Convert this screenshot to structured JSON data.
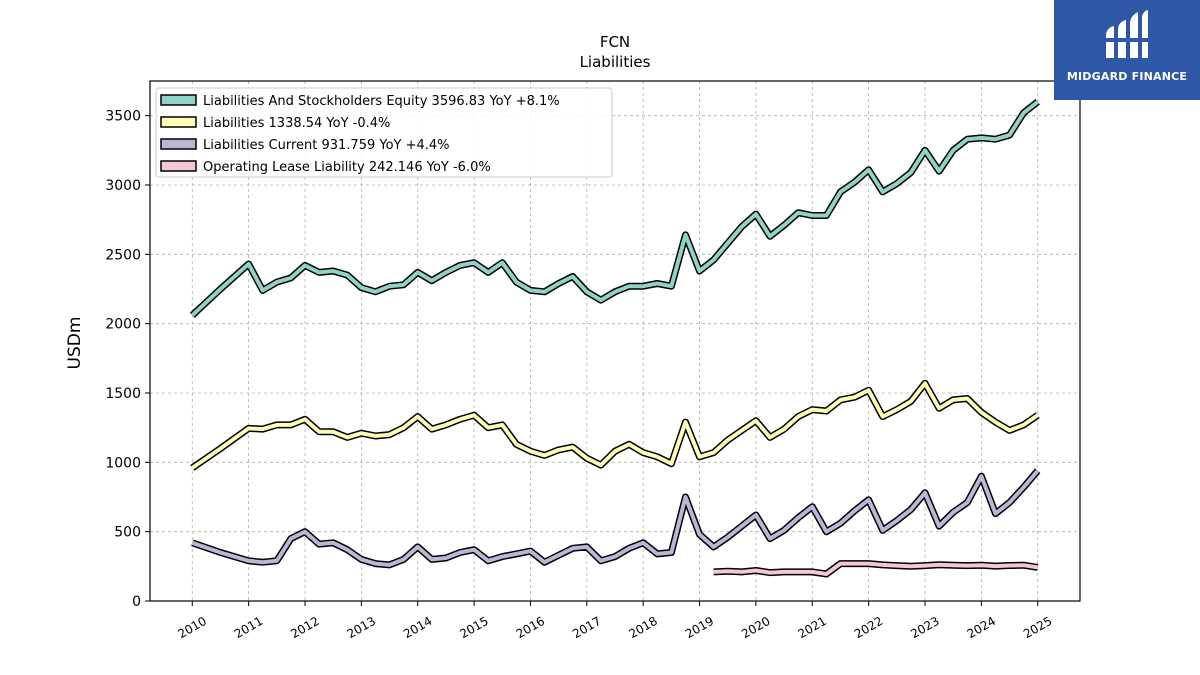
{
  "brand": {
    "name": "MIDGARD FINANCE",
    "color": "#2f57a8"
  },
  "chart_data": {
    "type": "line",
    "title": "FCN",
    "subtitle": "Liabilities",
    "xlabel": "",
    "ylabel": "USDm",
    "ylim": [
      0,
      3750
    ],
    "xlim": [
      2009.25,
      2025.75
    ],
    "grid": true,
    "legend_position": "top-left",
    "x_ticks": [
      "2010",
      "2011",
      "2012",
      "2013",
      "2014",
      "2015",
      "2016",
      "2017",
      "2018",
      "2019",
      "2020",
      "2021",
      "2022",
      "2023",
      "2024",
      "2025"
    ],
    "y_ticks": [
      0,
      500,
      1000,
      1500,
      2000,
      2500,
      3000,
      3500
    ],
    "series": [
      {
        "name": "Liabilities And Stockholders Equity  3596.83 YoY +8.1%",
        "color": "#8fd3c6",
        "points": [
          [
            2010.0,
            2060
          ],
          [
            2010.5,
            2250
          ],
          [
            2011.0,
            2430
          ],
          [
            2011.25,
            2240
          ],
          [
            2011.5,
            2300
          ],
          [
            2011.75,
            2330
          ],
          [
            2012.0,
            2420
          ],
          [
            2012.25,
            2370
          ],
          [
            2012.5,
            2380
          ],
          [
            2012.75,
            2350
          ],
          [
            2013.0,
            2260
          ],
          [
            2013.25,
            2230
          ],
          [
            2013.5,
            2270
          ],
          [
            2013.75,
            2280
          ],
          [
            2014.0,
            2370
          ],
          [
            2014.25,
            2310
          ],
          [
            2014.5,
            2370
          ],
          [
            2014.75,
            2420
          ],
          [
            2015.0,
            2440
          ],
          [
            2015.25,
            2370
          ],
          [
            2015.5,
            2440
          ],
          [
            2015.75,
            2300
          ],
          [
            2016.0,
            2240
          ],
          [
            2016.25,
            2230
          ],
          [
            2016.5,
            2290
          ],
          [
            2016.75,
            2340
          ],
          [
            2017.0,
            2230
          ],
          [
            2017.25,
            2170
          ],
          [
            2017.5,
            2230
          ],
          [
            2017.75,
            2270
          ],
          [
            2018.0,
            2270
          ],
          [
            2018.25,
            2290
          ],
          [
            2018.5,
            2270
          ],
          [
            2018.75,
            2640
          ],
          [
            2019.0,
            2380
          ],
          [
            2019.25,
            2460
          ],
          [
            2019.5,
            2580
          ],
          [
            2019.75,
            2700
          ],
          [
            2020.0,
            2790
          ],
          [
            2020.25,
            2630
          ],
          [
            2020.5,
            2710
          ],
          [
            2020.75,
            2800
          ],
          [
            2021.0,
            2780
          ],
          [
            2021.25,
            2780
          ],
          [
            2021.5,
            2950
          ],
          [
            2021.75,
            3020
          ],
          [
            2022.0,
            3110
          ],
          [
            2022.25,
            2950
          ],
          [
            2022.5,
            3010
          ],
          [
            2022.75,
            3090
          ],
          [
            2023.0,
            3250
          ],
          [
            2023.25,
            3100
          ],
          [
            2023.5,
            3250
          ],
          [
            2023.75,
            3330
          ],
          [
            2024.0,
            3340
          ],
          [
            2024.25,
            3330
          ],
          [
            2024.5,
            3360
          ],
          [
            2024.75,
            3520
          ],
          [
            2025.0,
            3600
          ]
        ]
      },
      {
        "name": "Liabilities  1338.54 YoY -0.4%",
        "color": "#fdfdb3",
        "points": [
          [
            2010.0,
            960
          ],
          [
            2010.5,
            1100
          ],
          [
            2011.0,
            1245
          ],
          [
            2011.25,
            1240
          ],
          [
            2011.5,
            1270
          ],
          [
            2011.75,
            1270
          ],
          [
            2012.0,
            1310
          ],
          [
            2012.25,
            1220
          ],
          [
            2012.5,
            1220
          ],
          [
            2012.75,
            1180
          ],
          [
            2013.0,
            1210
          ],
          [
            2013.25,
            1190
          ],
          [
            2013.5,
            1200
          ],
          [
            2013.75,
            1250
          ],
          [
            2014.0,
            1330
          ],
          [
            2014.25,
            1240
          ],
          [
            2014.5,
            1270
          ],
          [
            2014.75,
            1310
          ],
          [
            2015.0,
            1340
          ],
          [
            2015.25,
            1250
          ],
          [
            2015.5,
            1270
          ],
          [
            2015.75,
            1130
          ],
          [
            2016.0,
            1080
          ],
          [
            2016.25,
            1050
          ],
          [
            2016.5,
            1090
          ],
          [
            2016.75,
            1110
          ],
          [
            2017.0,
            1030
          ],
          [
            2017.25,
            980
          ],
          [
            2017.5,
            1080
          ],
          [
            2017.75,
            1130
          ],
          [
            2018.0,
            1070
          ],
          [
            2018.25,
            1040
          ],
          [
            2018.5,
            990
          ],
          [
            2018.75,
            1290
          ],
          [
            2019.0,
            1040
          ],
          [
            2019.25,
            1070
          ],
          [
            2019.5,
            1160
          ],
          [
            2019.75,
            1230
          ],
          [
            2020.0,
            1300
          ],
          [
            2020.25,
            1180
          ],
          [
            2020.5,
            1240
          ],
          [
            2020.75,
            1330
          ],
          [
            2021.0,
            1380
          ],
          [
            2021.25,
            1370
          ],
          [
            2021.5,
            1450
          ],
          [
            2021.75,
            1470
          ],
          [
            2022.0,
            1520
          ],
          [
            2022.25,
            1330
          ],
          [
            2022.5,
            1380
          ],
          [
            2022.75,
            1440
          ],
          [
            2023.0,
            1570
          ],
          [
            2023.25,
            1390
          ],
          [
            2023.5,
            1450
          ],
          [
            2023.75,
            1460
          ],
          [
            2024.0,
            1360
          ],
          [
            2024.25,
            1290
          ],
          [
            2024.5,
            1230
          ],
          [
            2024.75,
            1270
          ],
          [
            2025.0,
            1340
          ]
        ]
      },
      {
        "name": "Liabilities Current  931.759 YoY +4.4%",
        "color": "#bcb5d6",
        "points": [
          [
            2010.0,
            420
          ],
          [
            2010.5,
            350
          ],
          [
            2011.0,
            290
          ],
          [
            2011.25,
            280
          ],
          [
            2011.5,
            290
          ],
          [
            2011.75,
            450
          ],
          [
            2012.0,
            500
          ],
          [
            2012.25,
            410
          ],
          [
            2012.5,
            420
          ],
          [
            2012.75,
            370
          ],
          [
            2013.0,
            300
          ],
          [
            2013.25,
            270
          ],
          [
            2013.5,
            260
          ],
          [
            2013.75,
            300
          ],
          [
            2014.0,
            390
          ],
          [
            2014.25,
            300
          ],
          [
            2014.5,
            310
          ],
          [
            2014.75,
            350
          ],
          [
            2015.0,
            370
          ],
          [
            2015.25,
            290
          ],
          [
            2015.5,
            320
          ],
          [
            2015.75,
            340
          ],
          [
            2016.0,
            360
          ],
          [
            2016.25,
            280
          ],
          [
            2016.5,
            330
          ],
          [
            2016.75,
            380
          ],
          [
            2017.0,
            390
          ],
          [
            2017.25,
            290
          ],
          [
            2017.5,
            320
          ],
          [
            2017.75,
            380
          ],
          [
            2018.0,
            420
          ],
          [
            2018.25,
            340
          ],
          [
            2018.5,
            350
          ],
          [
            2018.75,
            750
          ],
          [
            2019.0,
            480
          ],
          [
            2019.25,
            390
          ],
          [
            2019.5,
            460
          ],
          [
            2019.75,
            540
          ],
          [
            2020.0,
            620
          ],
          [
            2020.25,
            450
          ],
          [
            2020.5,
            510
          ],
          [
            2020.75,
            600
          ],
          [
            2021.0,
            680
          ],
          [
            2021.25,
            500
          ],
          [
            2021.5,
            560
          ],
          [
            2021.75,
            650
          ],
          [
            2022.0,
            730
          ],
          [
            2022.25,
            510
          ],
          [
            2022.5,
            580
          ],
          [
            2022.75,
            660
          ],
          [
            2023.0,
            780
          ],
          [
            2023.25,
            540
          ],
          [
            2023.5,
            640
          ],
          [
            2023.75,
            710
          ],
          [
            2024.0,
            900
          ],
          [
            2024.25,
            630
          ],
          [
            2024.5,
            710
          ],
          [
            2024.75,
            820
          ],
          [
            2025.0,
            940
          ]
        ]
      },
      {
        "name": "Operating Lease Liability  242.146 YoY -6.0%",
        "color": "#f6c6d8",
        "points": [
          [
            2019.25,
            210
          ],
          [
            2019.5,
            215
          ],
          [
            2019.75,
            210
          ],
          [
            2020.0,
            220
          ],
          [
            2020.25,
            205
          ],
          [
            2020.5,
            210
          ],
          [
            2020.75,
            210
          ],
          [
            2021.0,
            210
          ],
          [
            2021.25,
            195
          ],
          [
            2021.5,
            270
          ],
          [
            2021.75,
            270
          ],
          [
            2022.0,
            270
          ],
          [
            2022.25,
            260
          ],
          [
            2022.5,
            255
          ],
          [
            2022.75,
            250
          ],
          [
            2023.0,
            255
          ],
          [
            2023.25,
            262
          ],
          [
            2023.5,
            258
          ],
          [
            2023.75,
            255
          ],
          [
            2024.0,
            258
          ],
          [
            2024.25,
            252
          ],
          [
            2024.5,
            256
          ],
          [
            2024.75,
            258
          ],
          [
            2025.0,
            242
          ]
        ]
      }
    ]
  }
}
